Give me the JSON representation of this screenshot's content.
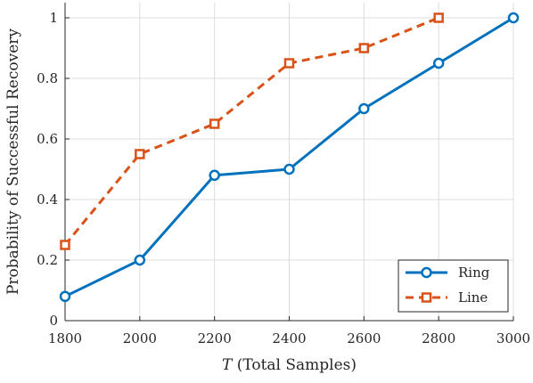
{
  "chart_data": {
    "type": "line",
    "title": "",
    "xlabel_var": "T",
    "xlabel_rest": " (Total Samples)",
    "ylabel": "Probability of Successful Recovery",
    "xlim": [
      1800,
      3000
    ],
    "ylim": [
      0,
      1.05
    ],
    "xticks": [
      1800,
      2000,
      2200,
      2400,
      2600,
      2800,
      3000
    ],
    "yticks": [
      0,
      0.2,
      0.4,
      0.6,
      0.8,
      1
    ],
    "ytick_labels": [
      "0",
      "0.2",
      "0.4",
      "0.6",
      "0.8",
      "1"
    ],
    "grid": true,
    "legend_position": "bottom-right",
    "series": [
      {
        "name": "Ring",
        "color": "#0072BD",
        "line_style": "solid",
        "marker": "circle",
        "x": [
          1800,
          2000,
          2200,
          2400,
          2600,
          2800,
          3000
        ],
        "y": [
          0.08,
          0.2,
          0.48,
          0.5,
          0.7,
          0.85,
          1.0
        ]
      },
      {
        "name": "Line",
        "color": "#D95319",
        "line_style": "dashed",
        "marker": "square",
        "x": [
          1800,
          2000,
          2200,
          2400,
          2600,
          2800
        ],
        "y": [
          0.25,
          0.55,
          0.65,
          0.85,
          0.9,
          1.0
        ]
      }
    ]
  }
}
